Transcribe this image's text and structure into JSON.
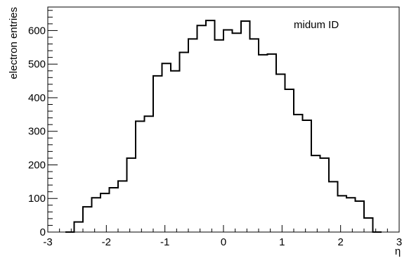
{
  "chart_data": {
    "type": "step-histogram",
    "xlabel": "η",
    "ylabel": "electron entries",
    "annotation": "midum ID",
    "xlim": [
      -3,
      3
    ],
    "ylim": [
      0,
      670
    ],
    "x_ticks": [
      -3,
      -2,
      -1,
      0,
      1,
      2,
      3
    ],
    "x_tick_labels": [
      "-3",
      "-2",
      "-1",
      "0",
      "1",
      "2",
      "3"
    ],
    "y_ticks": [
      0,
      100,
      200,
      300,
      400,
      500,
      600
    ],
    "y_tick_labels": [
      "0",
      "100",
      "200",
      "300",
      "400",
      "500",
      "600"
    ],
    "bin_width": 0.15,
    "bin_edges_start": -2.7,
    "values": [
      0,
      30,
      75,
      102,
      115,
      132,
      152,
      220,
      330,
      345,
      465,
      502,
      480,
      535,
      575,
      615,
      630,
      572,
      602,
      592,
      628,
      575,
      528,
      530,
      470,
      425,
      350,
      333,
      228,
      220,
      150,
      108,
      102,
      92,
      42,
      0
    ],
    "line_color": "#000000",
    "grid": false
  }
}
